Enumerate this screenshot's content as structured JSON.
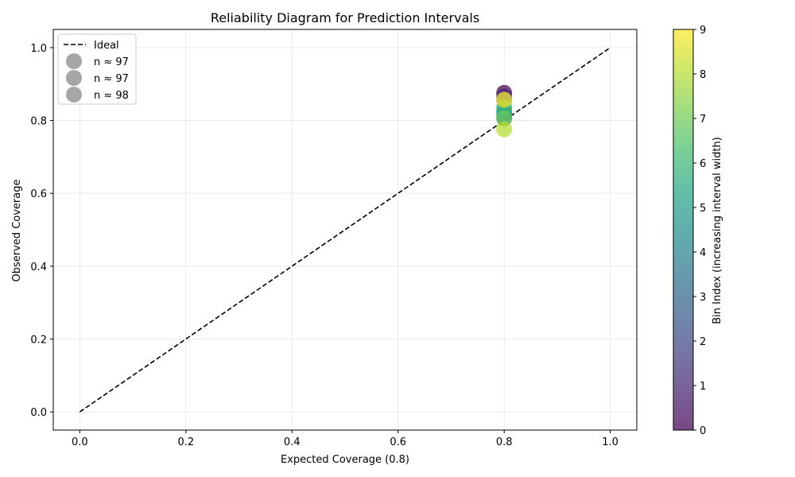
{
  "chart_data": {
    "type": "scatter",
    "title": "Reliability Diagram for Prediction Intervals",
    "xlabel": "Expected Coverage (0.8)",
    "ylabel": "Observed Coverage",
    "xlim": [
      -0.05,
      1.05
    ],
    "ylim": [
      -0.05,
      1.05
    ],
    "xticks": [
      "0.0",
      "0.2",
      "0.4",
      "0.6",
      "0.8",
      "1.0"
    ],
    "yticks": [
      "0.0",
      "0.2",
      "0.4",
      "0.6",
      "0.8",
      "1.0"
    ],
    "grid": true,
    "ideal_line": {
      "name": "Ideal",
      "x": [
        0,
        1
      ],
      "y": [
        0,
        1
      ],
      "style": "dashed",
      "color": "#000000"
    },
    "points": [
      {
        "bin": 0,
        "x": 0.8,
        "y": 0.876
      },
      {
        "bin": 1,
        "x": 0.8,
        "y": 0.866
      },
      {
        "bin": 2,
        "x": 0.8,
        "y": 0.806
      },
      {
        "bin": 3,
        "x": 0.8,
        "y": 0.856
      },
      {
        "bin": 4,
        "x": 0.8,
        "y": 0.826
      },
      {
        "bin": 5,
        "x": 0.8,
        "y": 0.816
      },
      {
        "bin": 6,
        "x": 0.8,
        "y": 0.836
      },
      {
        "bin": 7,
        "x": 0.8,
        "y": 0.806
      },
      {
        "bin": 8,
        "x": 0.8,
        "y": 0.776
      },
      {
        "bin": 9,
        "x": 0.8,
        "y": 0.857
      }
    ],
    "legend": {
      "placement": "top-left",
      "entries": [
        "Ideal",
        "n ≈ 97",
        "n ≈ 97",
        "n ≈ 98"
      ]
    },
    "colorbar": {
      "label": "Bin Index (increasing interval width)",
      "min": 0,
      "max": 9,
      "ticks": [
        "0",
        "1",
        "2",
        "3",
        "4",
        "5",
        "6",
        "7",
        "8",
        "9"
      ],
      "colormap": "viridis"
    }
  }
}
